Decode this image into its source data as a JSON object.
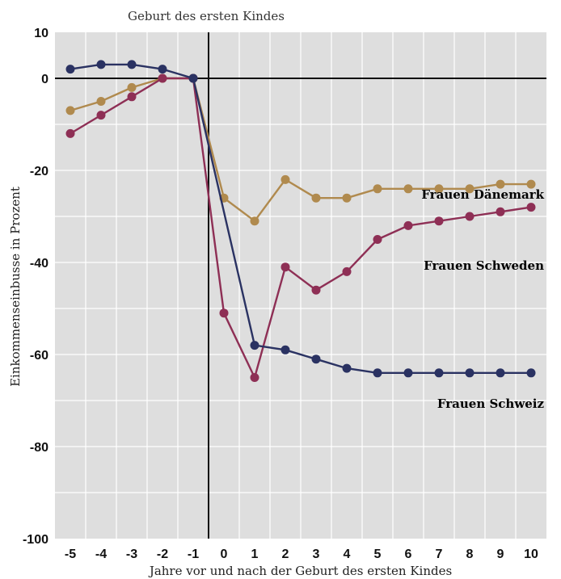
{
  "chart_data": {
    "type": "line",
    "annotation": "Geburt des ersten Kindes",
    "xlabel": "Jahre vor und nach der Geburt des ersten Kindes",
    "ylabel": "Einkommenseinbusse in Prozent",
    "x": [
      -5,
      -4,
      -3,
      -2,
      -1,
      0,
      1,
      2,
      3,
      4,
      5,
      6,
      7,
      8,
      9,
      10
    ],
    "xlim": [
      -5.5,
      10.5
    ],
    "ylim": [
      -100,
      10
    ],
    "yticks": [
      10,
      0,
      -20,
      -40,
      -60,
      -80,
      -100
    ],
    "grid": true,
    "series": [
      {
        "name": "Frauen Dänemark",
        "color": "#b08a4e",
        "values": [
          -7,
          -5,
          -2,
          0,
          0,
          -26,
          -31,
          -22,
          -26,
          -26,
          -24,
          -24,
          -24,
          -24,
          -23,
          -23
        ]
      },
      {
        "name": "Frauen Schweden",
        "color": "#8e2f55",
        "values": [
          -12,
          -8,
          -4,
          0,
          0,
          -51,
          -65,
          -41,
          -46,
          -42,
          -35,
          -32,
          -31,
          -30,
          -29,
          -28
        ]
      },
      {
        "name": "Frauen Schweiz",
        "color": "#2a3262",
        "values": [
          2,
          3,
          3,
          2,
          0,
          null,
          -58,
          -59,
          -61,
          -63,
          -64,
          -64,
          -64,
          -64,
          -64,
          -64
        ]
      }
    ]
  }
}
